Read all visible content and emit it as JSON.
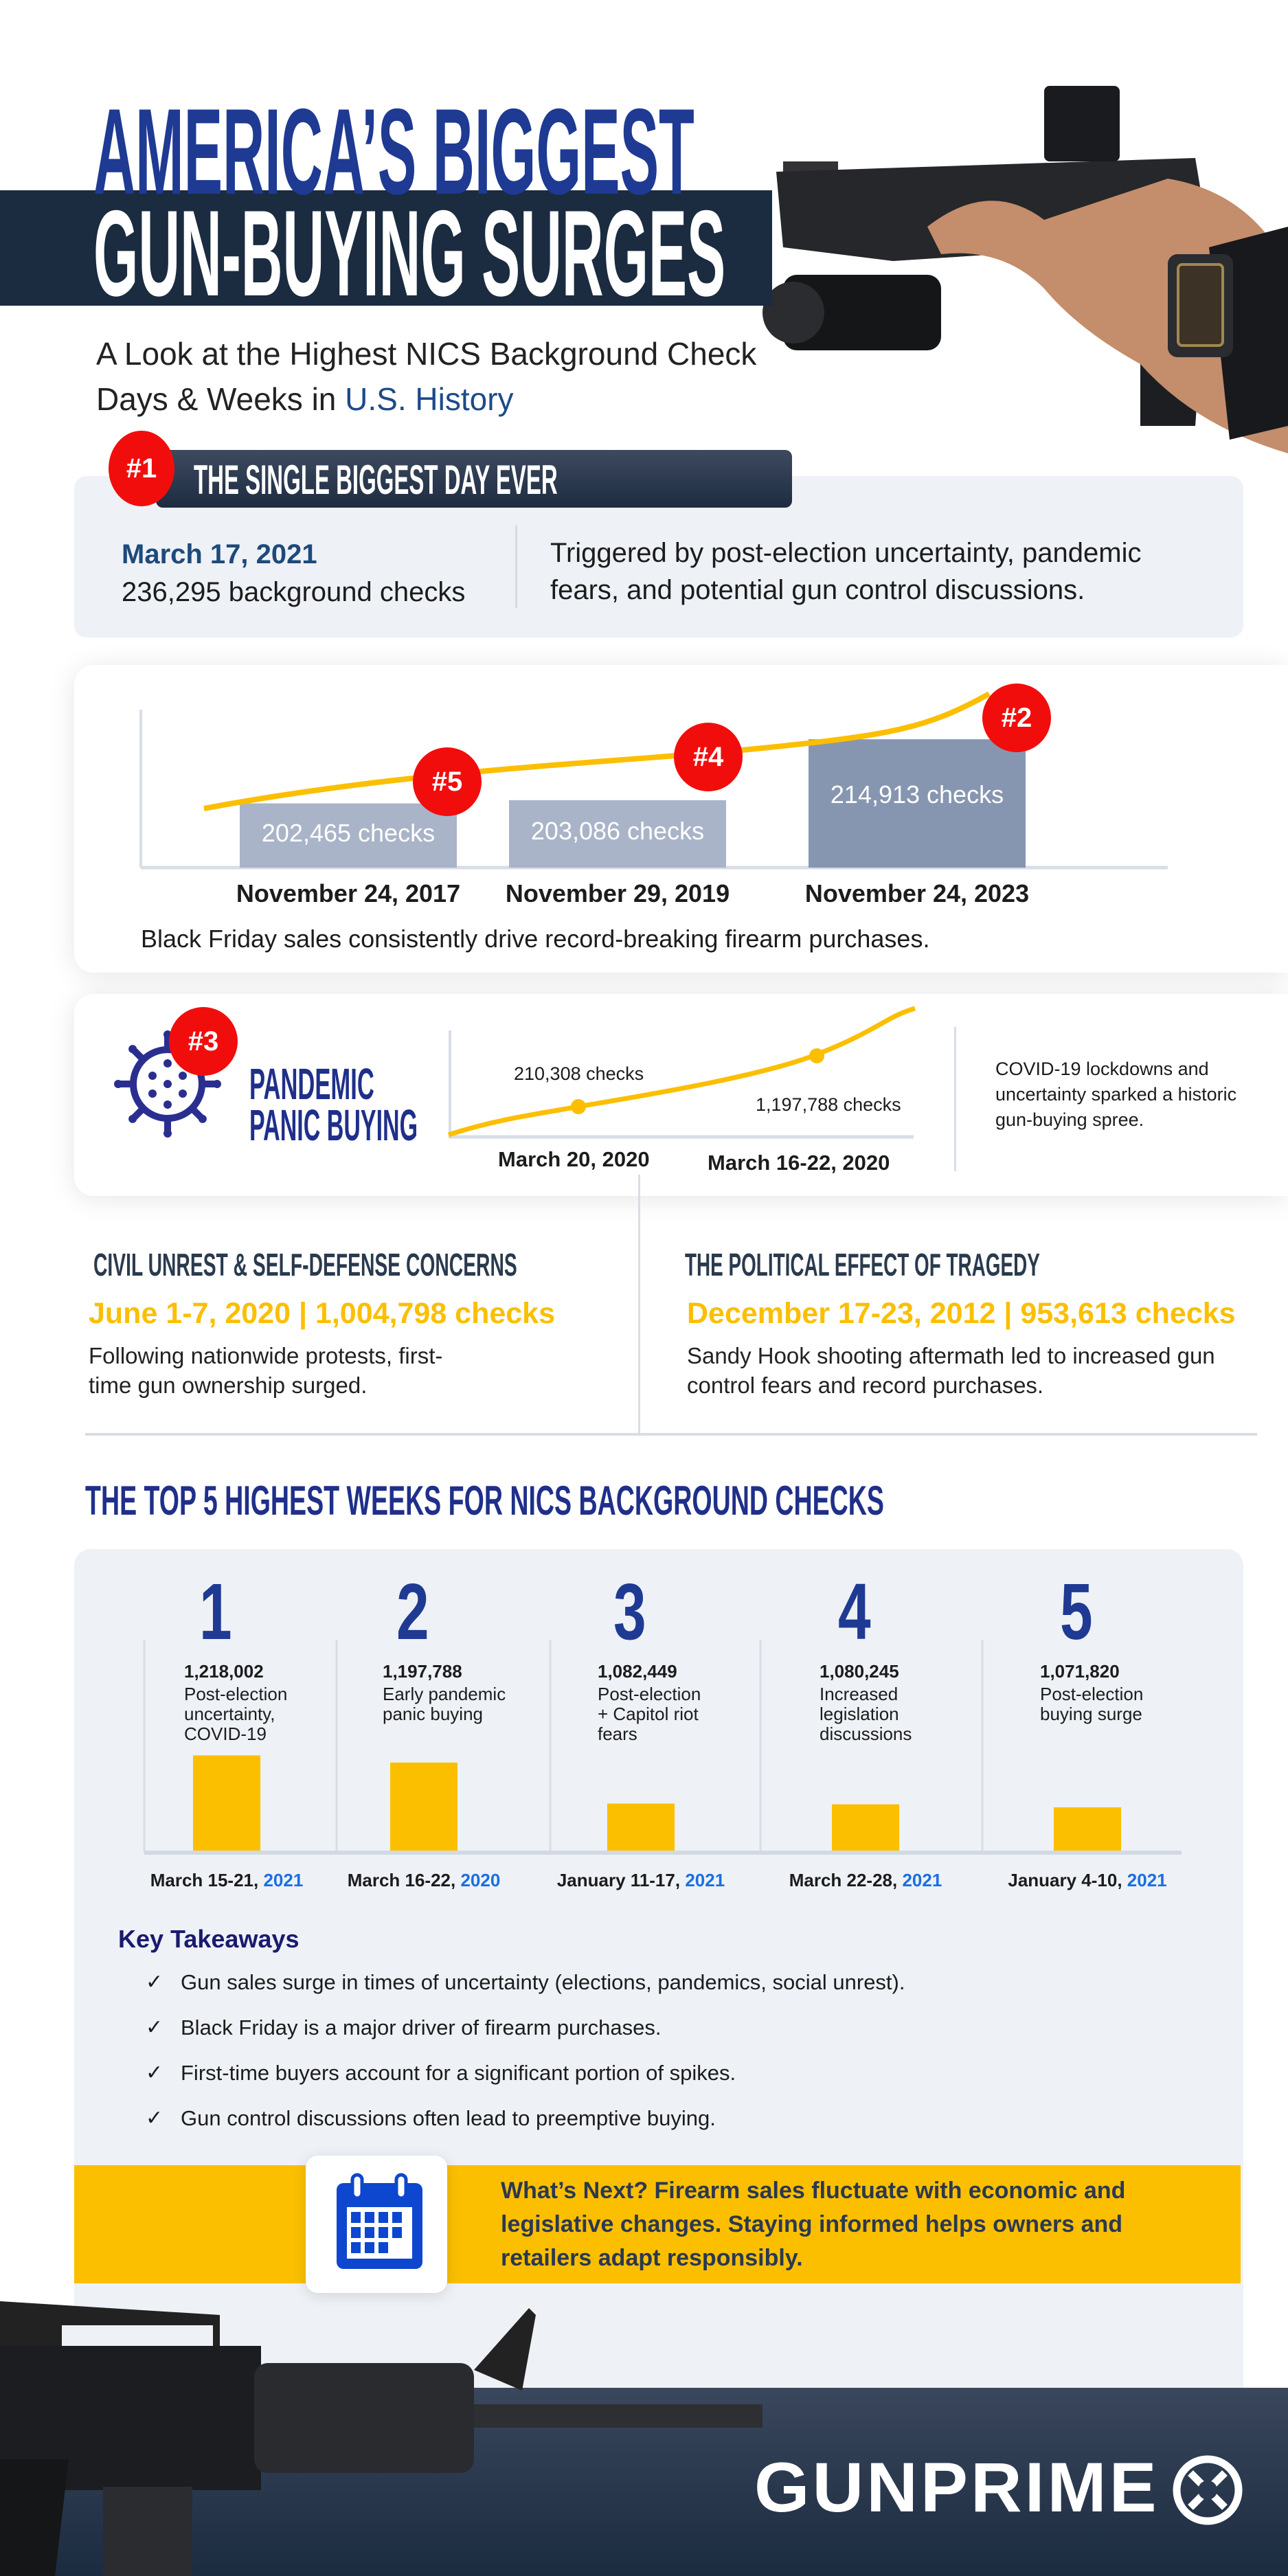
{
  "header": {
    "title_line1": "AMERICA’S BIGGEST",
    "title_line2": "GUN-BUYING SURGES",
    "subtitle_line1": "A Look at the Highest NICS Background Check",
    "subtitle_line2_prefix": "Days & Weeks in ",
    "subtitle_line2_highlight": "U.S. History"
  },
  "biggest_day": {
    "badge": "#1",
    "title": "THE SINGLE BIGGEST DAY EVER",
    "date": "March 17, 2021",
    "checks": "236,295 background checks",
    "desc_line1": "Triggered by post-election uncertainty, pandemic",
    "desc_line2": "fears, and potential gun control discussions."
  },
  "black_friday": {
    "badges": [
      "#5",
      "#4",
      "#2"
    ],
    "caption": "Black Friday sales consistently drive record-breaking firearm purchases."
  },
  "pandemic": {
    "badge": "#3",
    "title_line1": "PANDEMIC",
    "title_line2": "PANIC BUYING",
    "desc_lines": [
      "COVID-19 lockdowns and",
      "uncertainty sparked a historic",
      "gun-buying spree."
    ]
  },
  "civil_unrest": {
    "heading": "CIVIL UNREST & SELF-DEFENSE CONCERNS",
    "stat": "June 1-7, 2020 | 1,004,798 checks",
    "desc_lines": [
      "Following nationwide protests, first-",
      "time gun ownership surged."
    ]
  },
  "tragedy": {
    "heading": "THE POLITICAL EFFECT OF TRAGEDY",
    "stat": "December 17-23, 2012 | 953,613 checks",
    "desc_lines": [
      "Sandy Hook shooting aftermath led to increased gun",
      "control fears and record purchases."
    ]
  },
  "top5": {
    "heading": "THE TOP 5 HIGHEST WEEKS FOR NICS BACKGROUND CHECKS",
    "ranks": [
      "1",
      "2",
      "3",
      "4",
      "5"
    ],
    "items": [
      {
        "value": "1,218,002",
        "desc": [
          "Post-election",
          "uncertainty,",
          "COVID-19"
        ],
        "date": "March 15-21, ",
        "year": "2021"
      },
      {
        "value": "1,197,788",
        "desc": [
          "Early pandemic",
          "panic buying"
        ],
        "date": "March 16-22, ",
        "year": "2020"
      },
      {
        "value": "1,082,449",
        "desc": [
          "Post-election",
          "+ Capitol riot",
          "fears"
        ],
        "date": "January 11-17, ",
        "year": "2021"
      },
      {
        "value": "1,080,245",
        "desc": [
          "Increased",
          "legislation",
          "discussions"
        ],
        "date": "March 22-28, ",
        "year": "2021"
      },
      {
        "value": "1,071,820",
        "desc": [
          "Post-election",
          "buying surge"
        ],
        "date": "January 4-10, ",
        "year": "2021"
      }
    ]
  },
  "takeaways": {
    "title": "Key Takeaways",
    "check_glyph": "✓",
    "items": [
      "Gun sales surge in times of uncertainty (elections, pandemics, social unrest).",
      "Black Friday is a major driver of firearm purchases.",
      "First-time buyers account for a significant portion of spikes.",
      "Gun control discussions often lead to preemptive buying."
    ]
  },
  "whats_next": {
    "icon": "calendar-icon",
    "lines": [
      "What’s Next? Firearm sales fluctuate with economic and",
      "legislative changes. Staying informed helps owners and",
      "retailers adapt responsibly."
    ]
  },
  "footer": {
    "logo_text": "GUNPRIME"
  },
  "colors": {
    "navy": "#1b2b40",
    "blue_title": "#1f3a93",
    "accent_yellow": "#fbbf00",
    "badge_red": "#f20d0d",
    "year_blue": "#1a6fe0"
  },
  "chart_data": [
    {
      "type": "bar",
      "categories": [
        "November 24, 2017",
        "November 29, 2019",
        "November 24, 2023"
      ],
      "values": [
        202465,
        203086,
        214913
      ],
      "data_labels": [
        "202,465  checks",
        "203,086 checks",
        "214,913 checks"
      ],
      "ylim": [
        190000,
        218000
      ],
      "trend_line": true,
      "grid": false
    },
    {
      "type": "line",
      "categories": [
        "March 20, 2020",
        "March 16-22, 2020"
      ],
      "values": [
        210308,
        1197788
      ],
      "data_labels": [
        "210,308 checks",
        "1,197,788 checks"
      ],
      "grid": false
    },
    {
      "type": "bar",
      "categories": [
        "March 15-21, 2021",
        "March 16-22, 2020",
        "January 11-17, 2021",
        "March 22-28, 2021",
        "January 4-10, 2021"
      ],
      "values": [
        1218002,
        1197788,
        1082449,
        1080245,
        1071820
      ],
      "ylim": [
        950000,
        1240000
      ],
      "grid": false
    }
  ]
}
